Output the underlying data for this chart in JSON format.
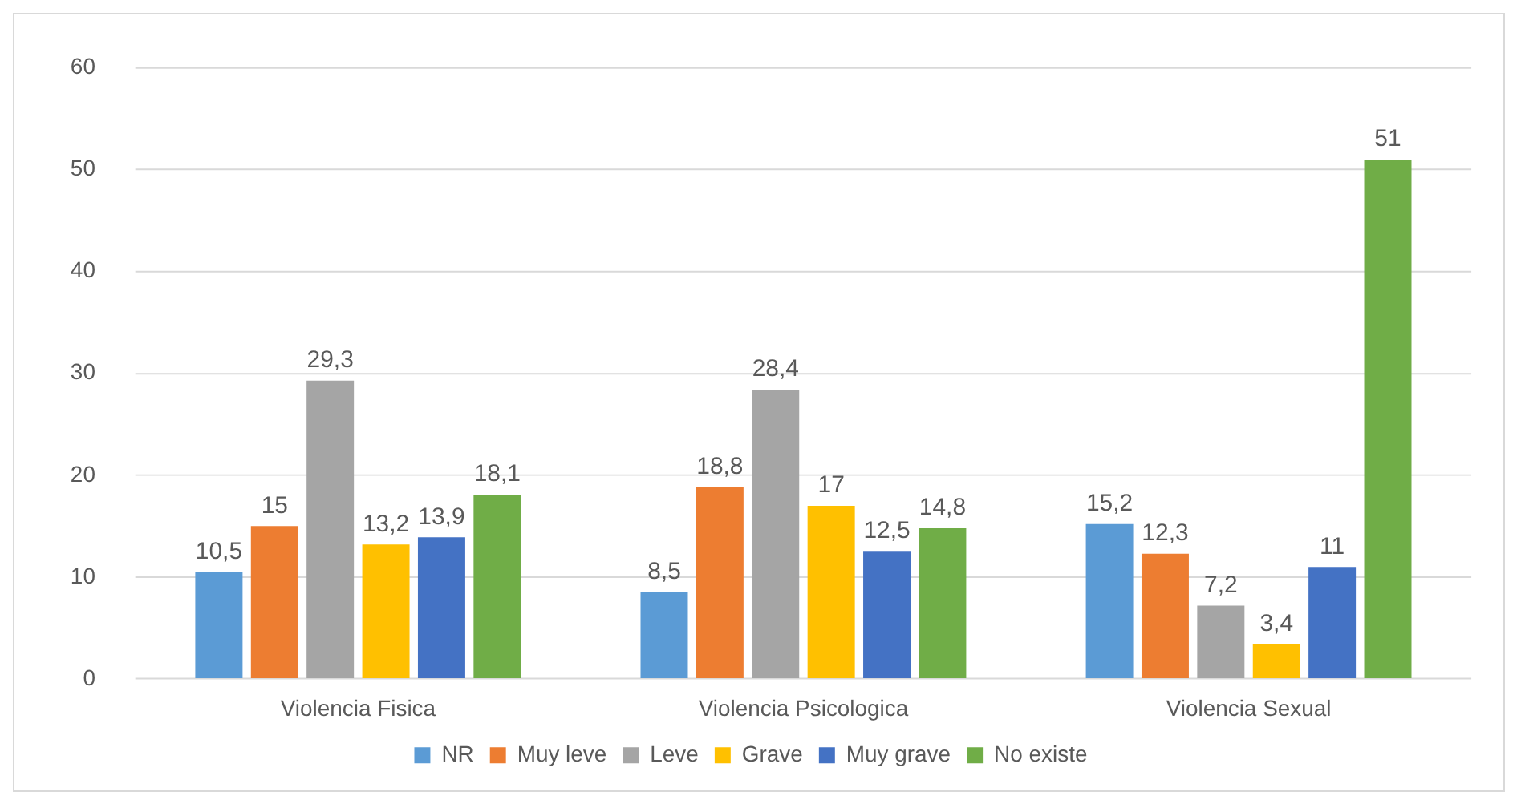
{
  "chart_data": {
    "type": "bar",
    "categories": [
      "Violencia Fisica",
      "Violencia Psicologica",
      "Violencia Sexual"
    ],
    "series": [
      {
        "name": "NR",
        "color": "#5b9bd5",
        "values": [
          10.5,
          8.5,
          15.2
        ],
        "value_labels": [
          "10,5",
          "8,5",
          "15,2"
        ]
      },
      {
        "name": "Muy leve",
        "color": "#ed7d31",
        "values": [
          15,
          18.8,
          12.3
        ],
        "value_labels": [
          "15",
          "18,8",
          "12,3"
        ]
      },
      {
        "name": "Leve",
        "color": "#a5a5a5",
        "values": [
          29.3,
          28.4,
          7.2
        ],
        "value_labels": [
          "29,3",
          "28,4",
          "7,2"
        ]
      },
      {
        "name": "Grave",
        "color": "#ffc000",
        "values": [
          13.2,
          17,
          3.4
        ],
        "value_labels": [
          "13,2",
          "17",
          "3,4"
        ]
      },
      {
        "name": "Muy grave",
        "color": "#4472c4",
        "values": [
          13.9,
          12.5,
          11
        ],
        "value_labels": [
          "13,9",
          "12,5",
          "11"
        ]
      },
      {
        "name": "No existe",
        "color": "#70ad47",
        "values": [
          18.1,
          14.8,
          51
        ],
        "value_labels": [
          "18,1",
          "14,8",
          "51"
        ]
      }
    ],
    "ylim": [
      0,
      60
    ],
    "yticks": [
      0,
      10,
      20,
      30,
      40,
      50,
      60
    ],
    "grid": "y",
    "legend": "bottom"
  }
}
